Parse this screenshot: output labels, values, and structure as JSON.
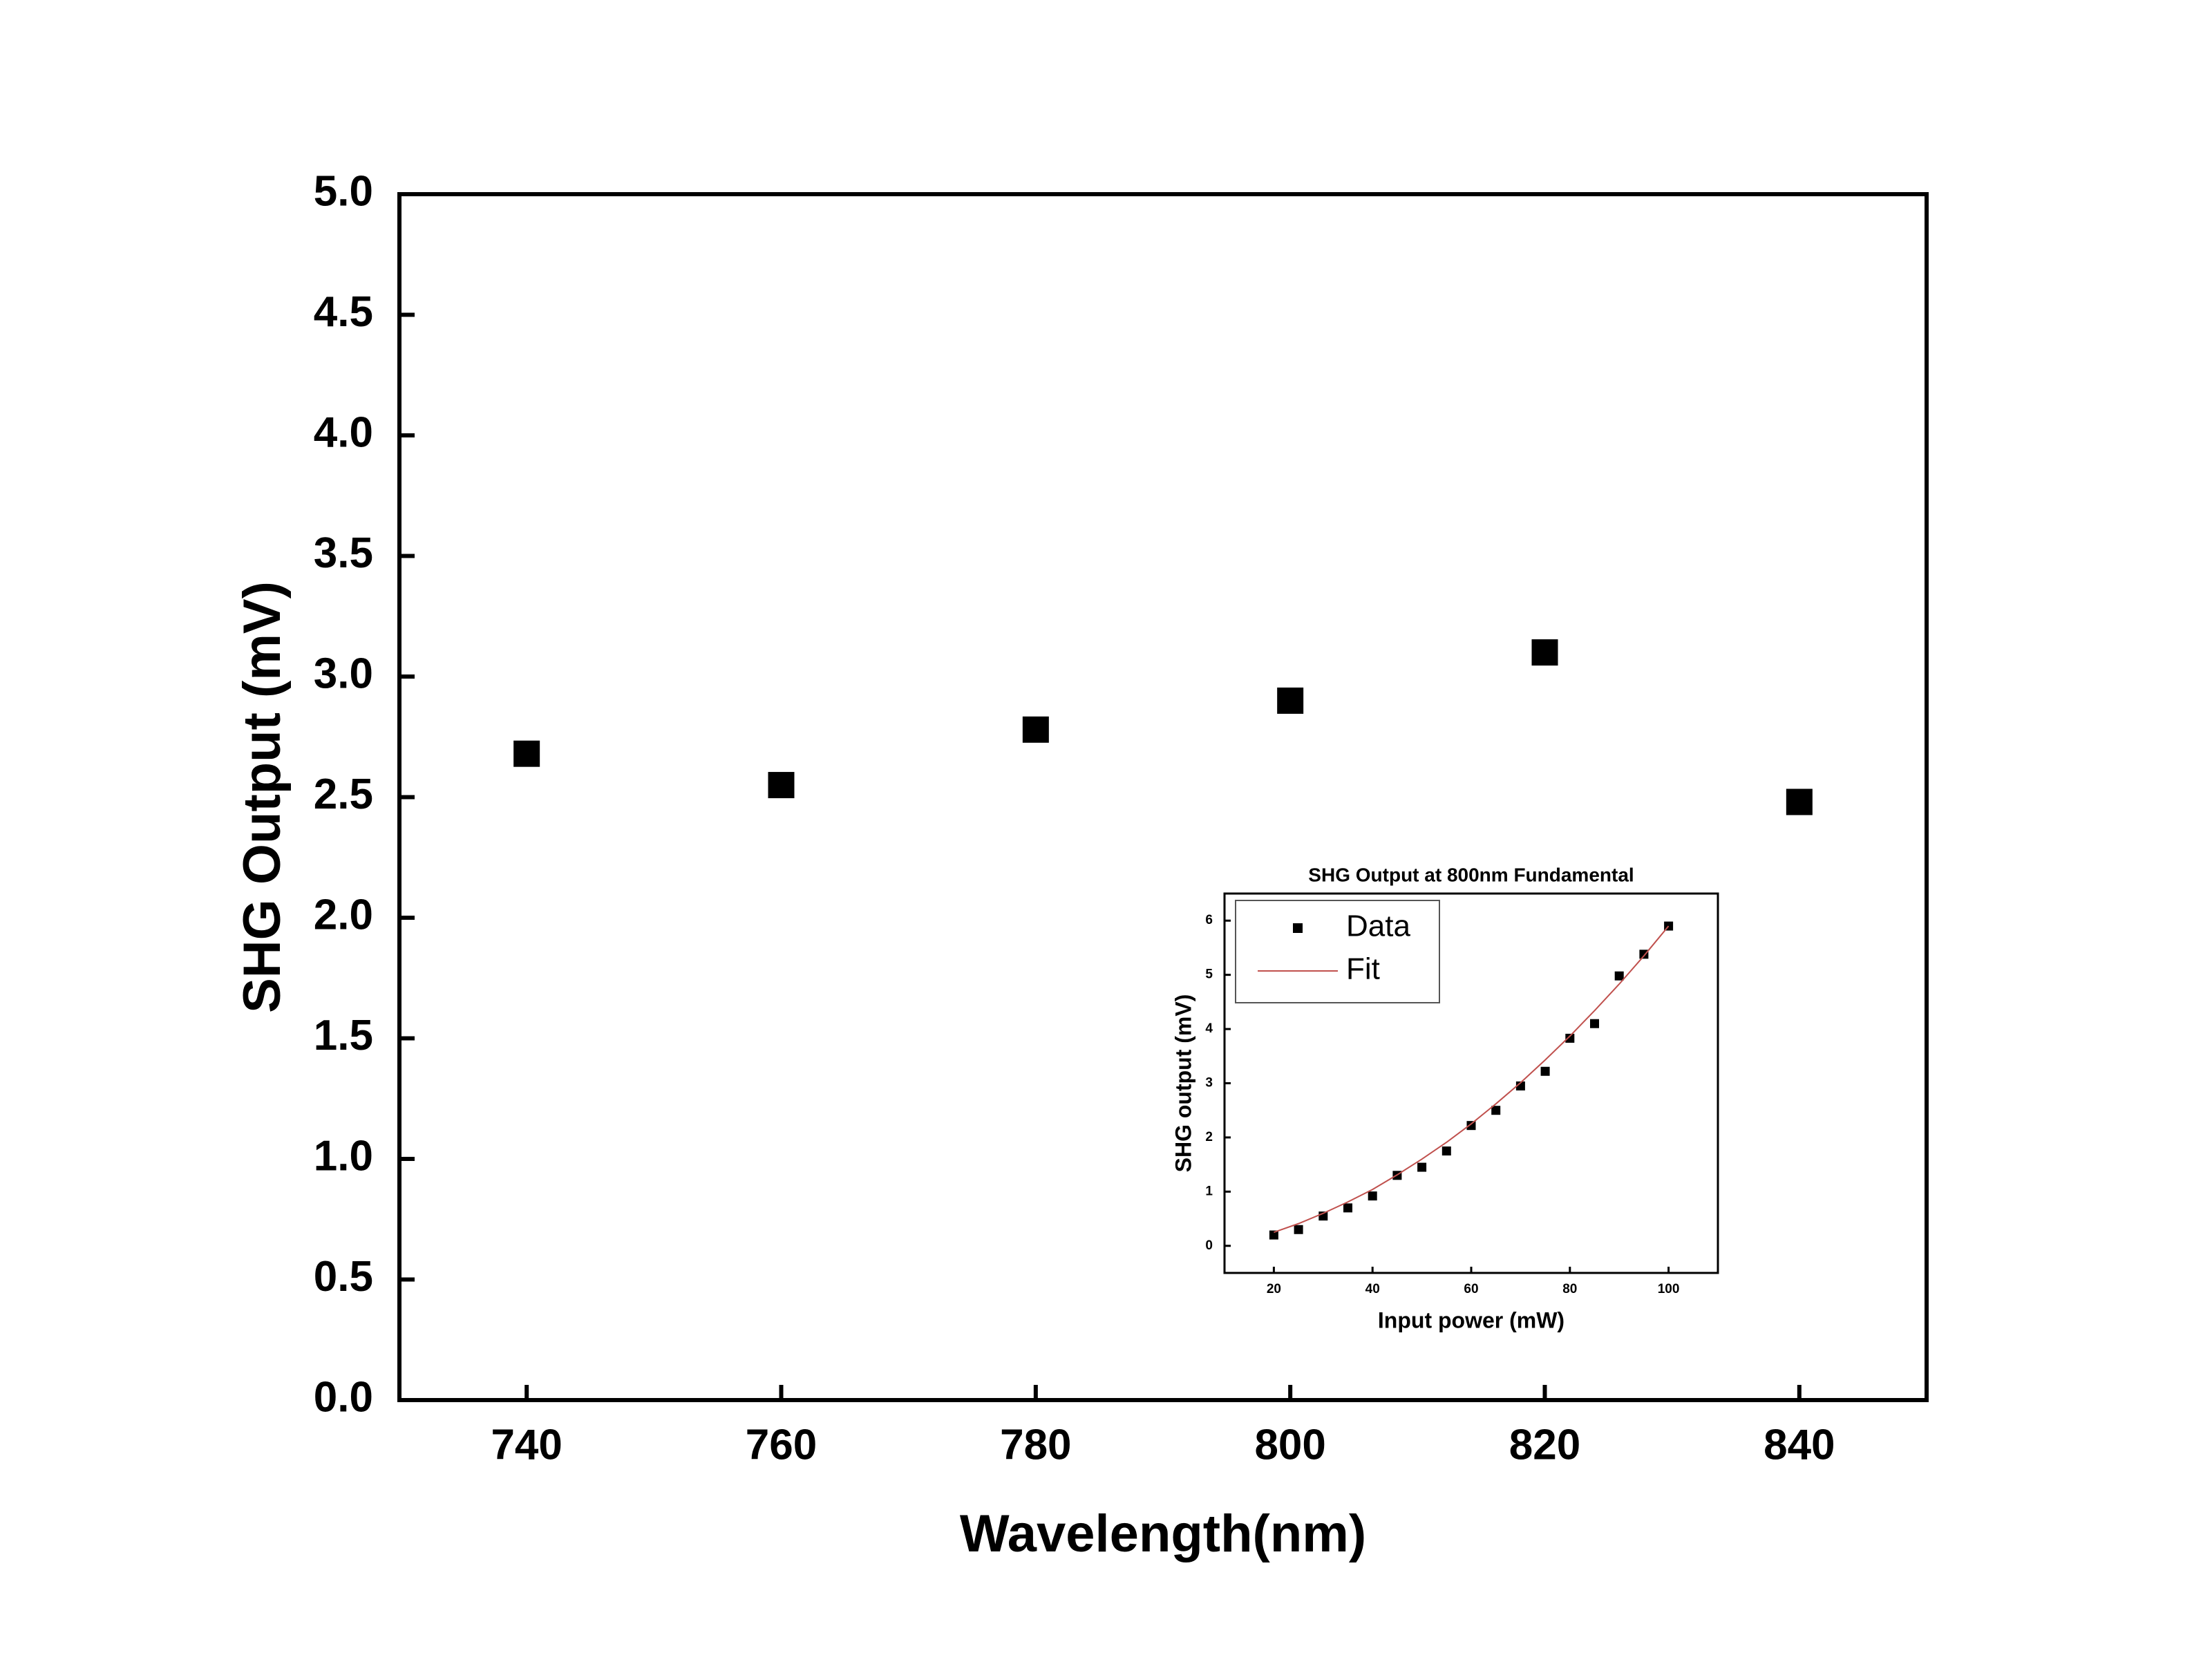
{
  "chart_data": [
    {
      "type": "scatter",
      "x_label": "Wavelength(nm)",
      "y_label": "SHG Output (mV)",
      "x": [
        740,
        760,
        780,
        800,
        820,
        840
      ],
      "values": [
        2.68,
        2.55,
        2.78,
        2.9,
        3.1,
        2.48
      ],
      "color": "#000000",
      "xlim": [
        730,
        850
      ],
      "xticks": [
        740,
        760,
        780,
        800,
        820,
        840
      ],
      "ylim": [
        0,
        5
      ],
      "yticks": [
        {
          "value": 0,
          "label": "0.0"
        },
        {
          "value": 0.5,
          "label": "0.5"
        },
        {
          "value": 1,
          "label": "1.0"
        },
        {
          "value": 1.5,
          "label": "1.5"
        },
        {
          "value": 2,
          "label": "2.0"
        },
        {
          "value": 2.5,
          "label": "2.5"
        },
        {
          "value": 3,
          "label": "3.0"
        },
        {
          "value": 3.5,
          "label": "3.5"
        },
        {
          "value": 4,
          "label": "4.0"
        },
        {
          "value": 4.5,
          "label": "4.5"
        },
        {
          "value": 5,
          "label": "5.0"
        }
      ]
    },
    {
      "type": "scatter",
      "title": "SHG Output at 800nm Fundamental",
      "x_label": "Input power (mW)",
      "y_label": "SHG output (mV)",
      "x": [
        20,
        25,
        30,
        35,
        40,
        45,
        50,
        55,
        60,
        65,
        70,
        75,
        80,
        85,
        90,
        95,
        100
      ],
      "series": [
        {
          "name": "Data",
          "color": "#000000",
          "mode": "markers",
          "values": [
            0.2,
            0.3,
            0.55,
            0.7,
            0.92,
            1.3,
            1.45,
            1.75,
            2.22,
            2.5,
            2.95,
            3.22,
            3.83,
            4.1,
            4.98,
            5.38,
            5.9
          ]
        },
        {
          "name": "Fit",
          "color": "#c0504d",
          "mode": "line",
          "values": [
            0.25,
            0.41,
            0.6,
            0.81,
            1.04,
            1.31,
            1.6,
            1.91,
            2.25,
            2.62,
            3.01,
            3.43,
            3.87,
            4.34,
            4.83,
            5.35,
            5.9
          ]
        }
      ],
      "legend": "upper left",
      "xlim": [
        10,
        110
      ],
      "xticks": [
        20,
        40,
        60,
        80,
        100
      ],
      "ylim": [
        -0.5,
        6.5
      ],
      "yticks": [
        0,
        1,
        2,
        3,
        4,
        5,
        6
      ]
    }
  ]
}
